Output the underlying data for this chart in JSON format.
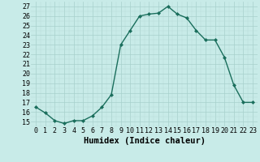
{
  "x": [
    0,
    1,
    2,
    3,
    4,
    5,
    6,
    7,
    8,
    9,
    10,
    11,
    12,
    13,
    14,
    15,
    16,
    17,
    18,
    19,
    20,
    21,
    22,
    23
  ],
  "y": [
    16.5,
    15.9,
    15.1,
    14.8,
    15.1,
    15.1,
    15.6,
    16.5,
    17.8,
    23.0,
    24.5,
    26.0,
    26.2,
    26.3,
    27.0,
    26.2,
    25.8,
    24.5,
    23.5,
    23.5,
    21.7,
    18.8,
    17.0,
    17.0
  ],
  "line_color": "#1a6e5c",
  "bg_color": "#c8ebe8",
  "xlabel": "Humidex (Indice chaleur)",
  "ylim": [
    14.5,
    27.5
  ],
  "xlim": [
    -0.5,
    23.5
  ],
  "yticks": [
    15,
    16,
    17,
    18,
    19,
    20,
    21,
    22,
    23,
    24,
    25,
    26,
    27
  ],
  "xticks": [
    0,
    1,
    2,
    3,
    4,
    5,
    6,
    7,
    8,
    9,
    10,
    11,
    12,
    13,
    14,
    15,
    16,
    17,
    18,
    19,
    20,
    21,
    22,
    23
  ],
  "marker": "D",
  "marker_size": 2.0,
  "line_width": 1.0,
  "xlabel_fontsize": 7.5,
  "tick_fontsize": 6.0,
  "fig_width": 3.2,
  "fig_height": 2.0,
  "dpi": 100
}
